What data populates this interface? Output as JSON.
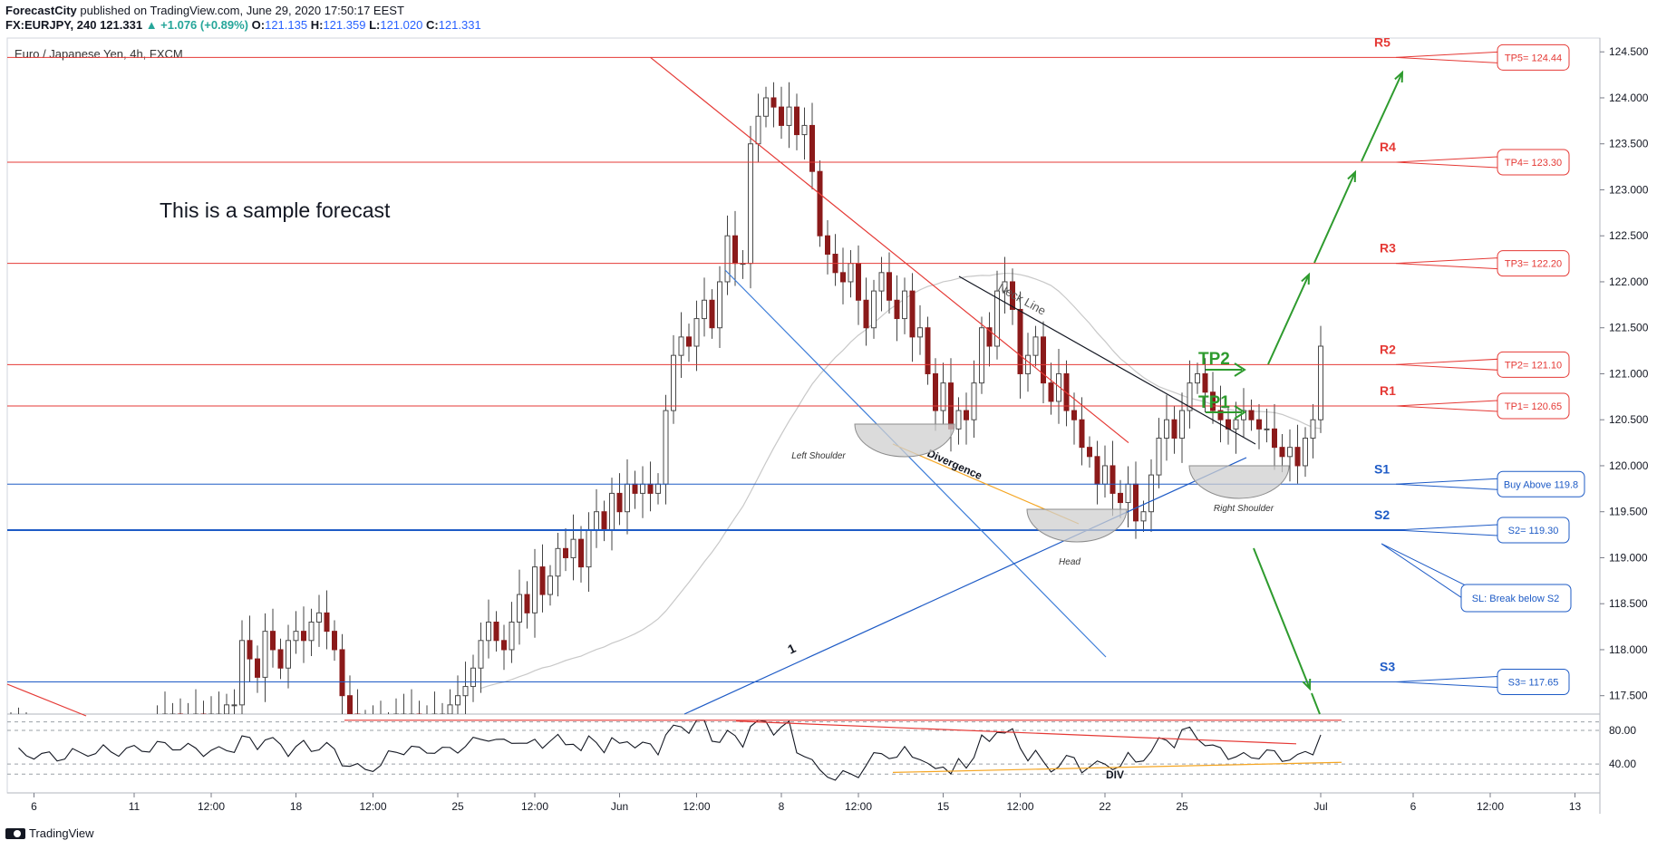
{
  "header": {
    "publisher": "ForecastCity",
    "published_text": "published on TradingView.com, June 29, 2020 17:50:17 EEST",
    "symbol": "FX:EURJPY, 240",
    "last": "121.331",
    "change": "▲ +1.076 (+0.89%)",
    "open_label": "O:",
    "open": "121.135",
    "high_label": "H:",
    "high": "121.359",
    "low_label": "L:",
    "low": "121.020",
    "close_label": "C:",
    "close": "121.331"
  },
  "footer": {
    "brand": "TradingView"
  },
  "colors": {
    "resistance": "#e53935",
    "support": "#1e5bc6",
    "target": "#2e9b2e",
    "candle_up": "#4a4a4a",
    "candle_down": "#8b1a1a",
    "rsi": "#131722"
  },
  "chart_data": [
    {
      "type": "candlestick",
      "title": "Euro / Japanese Yen, 4h, FXCM",
      "annotation_text": "This is a sample forecast",
      "ylim": [
        117.3,
        124.65
      ],
      "y_ticks": [
        "124.500",
        "124.000",
        "123.500",
        "123.000",
        "122.500",
        "122.000",
        "121.500",
        "121.000",
        "120.500",
        "120.000",
        "119.500",
        "119.000",
        "118.500",
        "118.000",
        "117.500"
      ],
      "x_ticks": [
        {
          "label": "6",
          "i": 3
        },
        {
          "label": "11",
          "i": 16
        },
        {
          "label": "12:00",
          "i": 26
        },
        {
          "label": "18",
          "i": 37
        },
        {
          "label": "12:00",
          "i": 47
        },
        {
          "label": "25",
          "i": 58
        },
        {
          "label": "12:00",
          "i": 68
        },
        {
          "label": "Jun",
          "i": 79
        },
        {
          "label": "12:00",
          "i": 89
        },
        {
          "label": "8",
          "i": 100
        },
        {
          "label": "12:00",
          "i": 110
        },
        {
          "label": "15",
          "i": 121
        },
        {
          "label": "12:00",
          "i": 131
        },
        {
          "label": "22",
          "i": 142
        },
        {
          "label": "25",
          "i": 152
        },
        {
          "label": "Jul",
          "i": 170
        },
        {
          "label": "6",
          "i": 182
        },
        {
          "label": "12:00",
          "i": 192
        },
        {
          "label": "13",
          "i": 203
        }
      ],
      "candles_close": [
        117.2,
        117.1,
        117.0,
        117.0,
        116.9,
        116.9,
        116.8,
        116.8,
        116.9,
        116.8,
        116.9,
        116.8,
        116.9,
        116.8,
        116.9,
        116.9,
        117.0,
        117.0,
        117.1,
        117.2,
        117.3,
        117.3,
        117.2,
        117.2,
        117.3,
        117.2,
        117.3,
        117.3,
        117.4,
        117.4,
        118.1,
        117.9,
        117.7,
        118.2,
        118.0,
        117.8,
        118.1,
        118.2,
        118.1,
        118.3,
        118.4,
        118.2,
        118.0,
        117.5,
        117.3,
        117.2,
        117.1,
        117.2,
        117.1,
        117.2,
        117.3,
        117.3,
        117.3,
        117.2,
        117.2,
        117.3,
        117.3,
        117.4,
        117.5,
        117.6,
        117.8,
        118.1,
        118.3,
        118.1,
        118.0,
        118.3,
        118.6,
        118.4,
        118.9,
        118.6,
        118.8,
        119.1,
        119.0,
        119.2,
        118.9,
        119.3,
        119.5,
        119.3,
        119.7,
        119.5,
        119.8,
        119.7,
        119.8,
        119.7,
        119.8,
        120.6,
        121.2,
        121.4,
        121.3,
        121.6,
        121.8,
        121.5,
        122.0,
        122.5,
        122.2,
        122.2,
        123.5,
        123.8,
        124.0,
        123.9,
        123.7,
        123.9,
        123.6,
        123.7,
        123.2,
        122.5,
        122.3,
        122.1,
        122.0,
        122.2,
        121.8,
        121.5,
        121.9,
        122.1,
        121.8,
        121.6,
        121.9,
        121.4,
        121.5,
        121.0,
        120.6,
        120.9,
        120.4,
        120.6,
        120.5,
        120.9,
        121.5,
        121.3,
        121.9,
        122.0,
        121.7,
        121.0,
        121.2,
        121.4,
        120.9,
        120.7,
        121.0,
        120.6,
        120.5,
        120.2,
        120.1,
        119.8,
        120.0,
        119.7,
        119.6,
        119.8,
        119.4,
        119.5,
        119.9,
        120.3,
        120.5,
        120.3,
        120.6,
        120.9,
        121.0,
        120.8,
        120.6,
        120.5,
        120.4,
        120.5,
        120.6,
        120.5,
        120.4,
        120.4,
        120.2,
        120.1,
        120.2,
        120.0,
        120.3,
        120.5,
        121.3
      ],
      "indicator_text": "DIV",
      "rsi_ticks": [
        "80.00",
        "40.00"
      ],
      "levels": [
        {
          "label": "R5",
          "value": 124.44,
          "note": "TP5= 124.44",
          "kind": "resistance"
        },
        {
          "label": "R4",
          "value": 123.3,
          "note": "TP4= 123.30",
          "kind": "resistance"
        },
        {
          "label": "R3",
          "value": 122.2,
          "note": "TP3= 122.20",
          "kind": "resistance"
        },
        {
          "label": "R2",
          "value": 121.1,
          "note": "TP2= 121.10",
          "kind": "resistance"
        },
        {
          "label": "R1",
          "value": 120.65,
          "note": "TP1= 120.65",
          "kind": "resistance"
        },
        {
          "label": "S1",
          "value": 119.8,
          "note": "Buy Above 119.8",
          "kind": "support"
        },
        {
          "label": "S2",
          "value": 119.3,
          "note": "S2= 119.30",
          "kind": "support"
        },
        {
          "label": "S3",
          "value": 117.65,
          "note": "S3= 117.65",
          "kind": "support"
        }
      ],
      "extra_callout": "SL: Break below S2",
      "pattern_labels": {
        "left_shoulder": "Left Shoulder",
        "head": "Head",
        "right_shoulder": "Right Shoulder",
        "neck_line": "Neck Line",
        "divergence": "Divergence",
        "wave": "1"
      },
      "targets": [
        "TP1",
        "TP2"
      ]
    }
  ]
}
